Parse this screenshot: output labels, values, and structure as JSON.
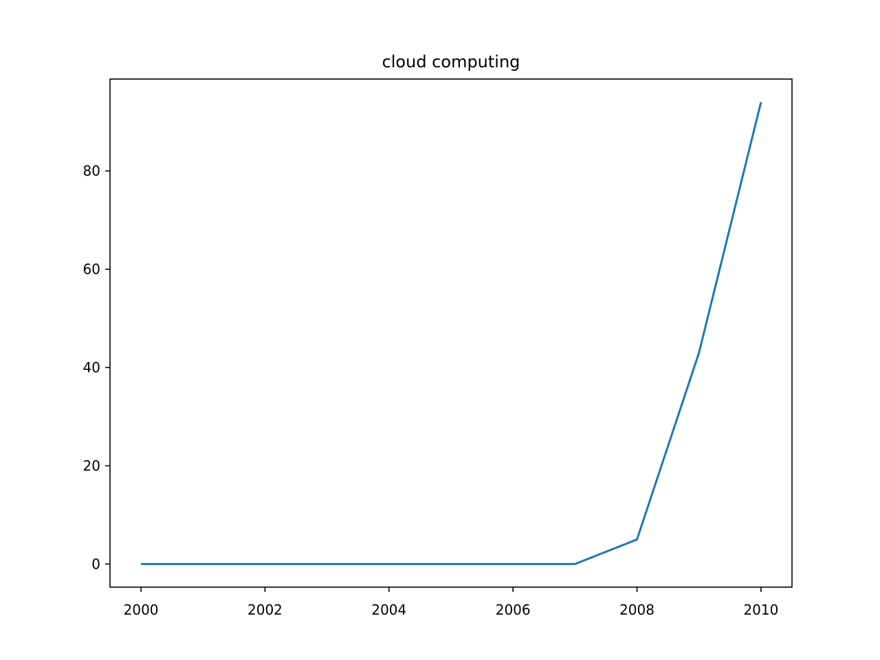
{
  "chart_data": {
    "type": "line",
    "title": "cloud computing",
    "xlabel": "",
    "ylabel": "",
    "x": [
      2000,
      2001,
      2002,
      2003,
      2004,
      2005,
      2006,
      2007,
      2008,
      2009,
      2010
    ],
    "series": [
      {
        "values": [
          0,
          0,
          0,
          0,
          0,
          0,
          0,
          0,
          5,
          43,
          94
        ],
        "color": "#1f77b4"
      }
    ],
    "xlim": [
      1999.5,
      2010.5
    ],
    "ylim": [
      -4.7,
      98.7
    ],
    "x_ticks": [
      2000,
      2002,
      2004,
      2006,
      2008,
      2010
    ],
    "x_tick_labels": [
      "2000",
      "2002",
      "2004",
      "2006",
      "2008",
      "2010"
    ],
    "y_ticks": [
      0,
      20,
      40,
      60,
      80
    ],
    "y_tick_labels": [
      "0",
      "20",
      "40",
      "60",
      "80"
    ],
    "grid": false,
    "legend": "none"
  }
}
